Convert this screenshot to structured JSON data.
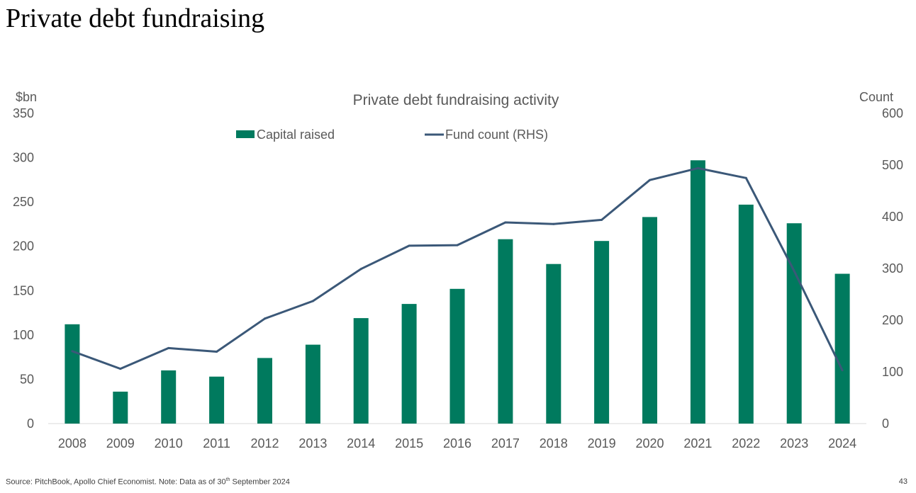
{
  "slide": {
    "title": "Private debt fundraising",
    "footnote_prefix": "Source: PitchBook, Apollo Chief Economist. Note: Data as of 30",
    "footnote_superscript": "th",
    "footnote_suffix": " September 2024",
    "page_number": "43"
  },
  "colors": {
    "bar": "#007A5E",
    "line": "#3B5878",
    "axis": "#D9D9D9",
    "text": "#595959"
  },
  "chart_data": {
    "type": "bar",
    "title": "Private debt fundraising activity",
    "ylabel": "$bn",
    "y2label": "Count",
    "categories": [
      "2008",
      "2009",
      "2010",
      "2011",
      "2012",
      "2013",
      "2014",
      "2015",
      "2016",
      "2017",
      "2018",
      "2019",
      "2020",
      "2021",
      "2022",
      "2023",
      "2024"
    ],
    "ylim": [
      0,
      350
    ],
    "yticks": [
      0,
      50,
      100,
      150,
      200,
      250,
      300,
      350
    ],
    "y2lim": [
      0,
      600
    ],
    "y2ticks": [
      0,
      100,
      200,
      300,
      400,
      500,
      600
    ],
    "grid": false,
    "legend_position": "top-center",
    "series": [
      {
        "name": "Capital raised",
        "type": "bar",
        "axis": "left",
        "values": [
          112,
          36,
          60,
          53,
          74,
          89,
          119,
          135,
          152,
          208,
          180,
          206,
          233,
          297,
          247,
          226,
          169
        ]
      },
      {
        "name": "Fund count (RHS)",
        "type": "line",
        "axis": "right",
        "values": [
          140,
          106,
          146,
          139,
          203,
          237,
          299,
          344,
          345,
          389,
          386,
          394,
          471,
          494,
          475,
          295,
          103
        ]
      }
    ]
  }
}
